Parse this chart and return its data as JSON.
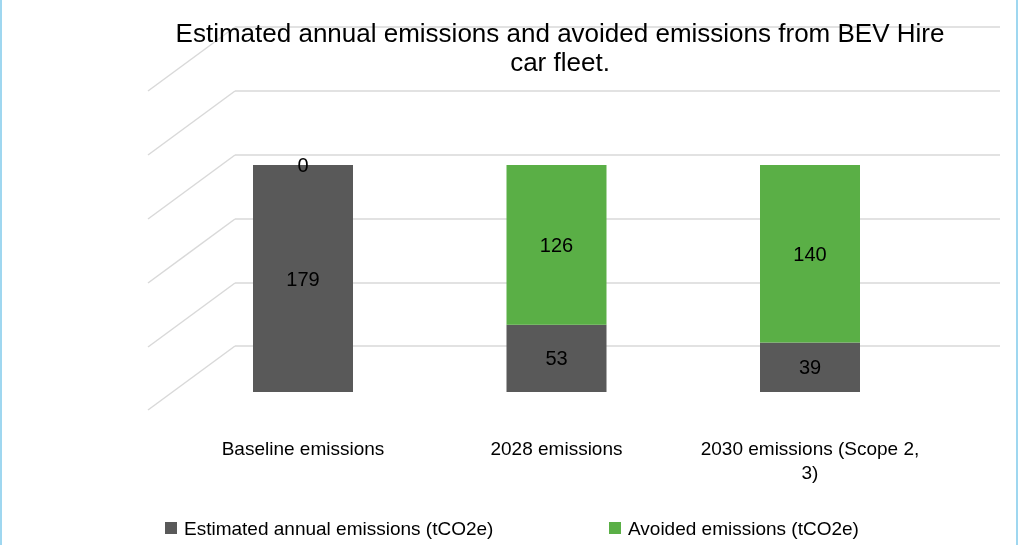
{
  "chart_data": {
    "type": "bar",
    "title": "Estimated annual emissions and avoided emissions from BEV Hire car fleet.",
    "categories": [
      "Baseline emissions",
      "2028 emissions",
      "2030 emissions (Scope 2, 3)"
    ],
    "stacked": true,
    "data_labels": true,
    "grid": true,
    "legend": "bottom",
    "series": [
      {
        "name": "Estimated annual emissions (tCO2e)",
        "color": "#595959",
        "values": [
          179,
          53,
          39
        ]
      },
      {
        "name": "Avoided emissions (tCO2e)",
        "color": "#5aaf46",
        "values": [
          0,
          126,
          140
        ]
      }
    ]
  }
}
